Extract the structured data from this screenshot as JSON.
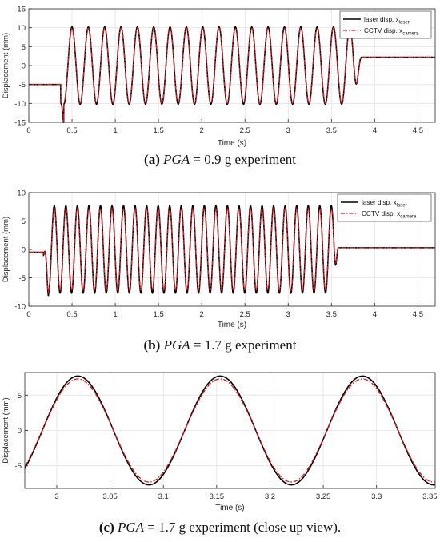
{
  "chart_data": [
    {
      "type": "line",
      "panel": "a",
      "xlabel": "Time (s)",
      "ylabel": "Displacement (mm)",
      "xlim": [
        0,
        4.7
      ],
      "ylim": [
        -15,
        15
      ],
      "xticks": [
        0,
        0.5,
        1,
        1.5,
        2,
        2.5,
        3,
        3.5,
        4,
        4.5
      ],
      "xtick_labels": [
        "0",
        "0.5",
        "1",
        "1.5",
        "2",
        "2.5",
        "3",
        "3.5",
        "4",
        "4.5"
      ],
      "yticks": [
        -15,
        -10,
        -5,
        0,
        5,
        10,
        15
      ],
      "ytick_labels": [
        "-15",
        "-10",
        "-5",
        "0",
        "5",
        "10",
        "15"
      ],
      "grid": true,
      "legend_position": "top-right",
      "series": [
        {
          "legend_main": "laser disp. x",
          "legend_sub": "laser",
          "color": "#000000",
          "dash": "solid"
        },
        {
          "legend_main": "CCTV disp. x",
          "legend_sub": "camera",
          "color": "#e4141b",
          "dash": "dashdot"
        }
      ],
      "signal": {
        "initial": -5,
        "final": 2.2,
        "ramp_in": [
          0.37,
          0.43
        ],
        "osc_start": 0.405,
        "osc_end": 3.75,
        "period": 0.189,
        "amplitude_laser": 10.2,
        "amplitude_camera": 9.9,
        "settle": [
          3.75,
          3.85
        ]
      }
    },
    {
      "type": "line",
      "panel": "b",
      "xlabel": "Time (s)",
      "ylabel": "Displacement (mm)",
      "xlim": [
        0,
        4.7
      ],
      "ylim": [
        -10,
        10
      ],
      "xticks": [
        0,
        0.5,
        1,
        1.5,
        2,
        2.5,
        3,
        3.5,
        4,
        4.5
      ],
      "xtick_labels": [
        "0",
        "0.5",
        "1",
        "1.5",
        "2",
        "2.5",
        "3",
        "3.5",
        "4",
        "4.5"
      ],
      "yticks": [
        -10,
        -5,
        0,
        5,
        10
      ],
      "ytick_labels": [
        "-10",
        "-5",
        "0",
        "5",
        "10"
      ],
      "grid": true,
      "legend_position": "top-right",
      "series": [
        {
          "legend_main": "laser disp. x",
          "legend_sub": "laser",
          "color": "#000000",
          "dash": "solid"
        },
        {
          "legend_main": "CCTV disp. x",
          "legend_sub": "camera",
          "color": "#e4141b",
          "dash": "dashdot"
        }
      ],
      "signal": {
        "initial": -0.5,
        "final": 0.3,
        "ramp_in": [
          0.17,
          0.25
        ],
        "osc_start": 0.228,
        "osc_end": 3.57,
        "period": 0.1335,
        "amplitude_laser": 7.7,
        "amplitude_camera": 7.2,
        "settle": [
          3.52,
          3.58
        ]
      }
    },
    {
      "type": "line",
      "panel": "c",
      "xlabel": "Time (s)",
      "ylabel": "Displacement (mm)",
      "xlim": [
        2.97,
        3.355
      ],
      "ylim": [
        -8.2,
        8.2
      ],
      "xticks": [
        3,
        3.05,
        3.1,
        3.15,
        3.2,
        3.25,
        3.3,
        3.35
      ],
      "xtick_labels": [
        "3",
        "3.05",
        "3.1",
        "3.15",
        "3.2",
        "3.25",
        "3.3",
        "3.35"
      ],
      "yticks": [
        -5,
        0,
        5
      ],
      "ytick_labels": [
        "-5",
        "0",
        "5"
      ],
      "grid": true,
      "legend_position": "none",
      "series": [
        {
          "color": "#000000",
          "dash": "solid"
        },
        {
          "color": "#e4141b",
          "dash": "dashdot"
        }
      ],
      "signal": {
        "period": 0.1335,
        "peak_time": 3.0198,
        "amplitude_laser": 7.7,
        "amplitude_camera": 7.3
      }
    }
  ],
  "captions": {
    "a": {
      "label": "(a)",
      "var": "PGA",
      "text": " = 0.9 g experiment"
    },
    "b": {
      "label": "(b)",
      "var": "PGA",
      "text": " = 1.7 g experiment"
    },
    "c": {
      "label": "(c)",
      "var": "PGA",
      "text": " = 1.7 g experiment (close up view)."
    }
  }
}
